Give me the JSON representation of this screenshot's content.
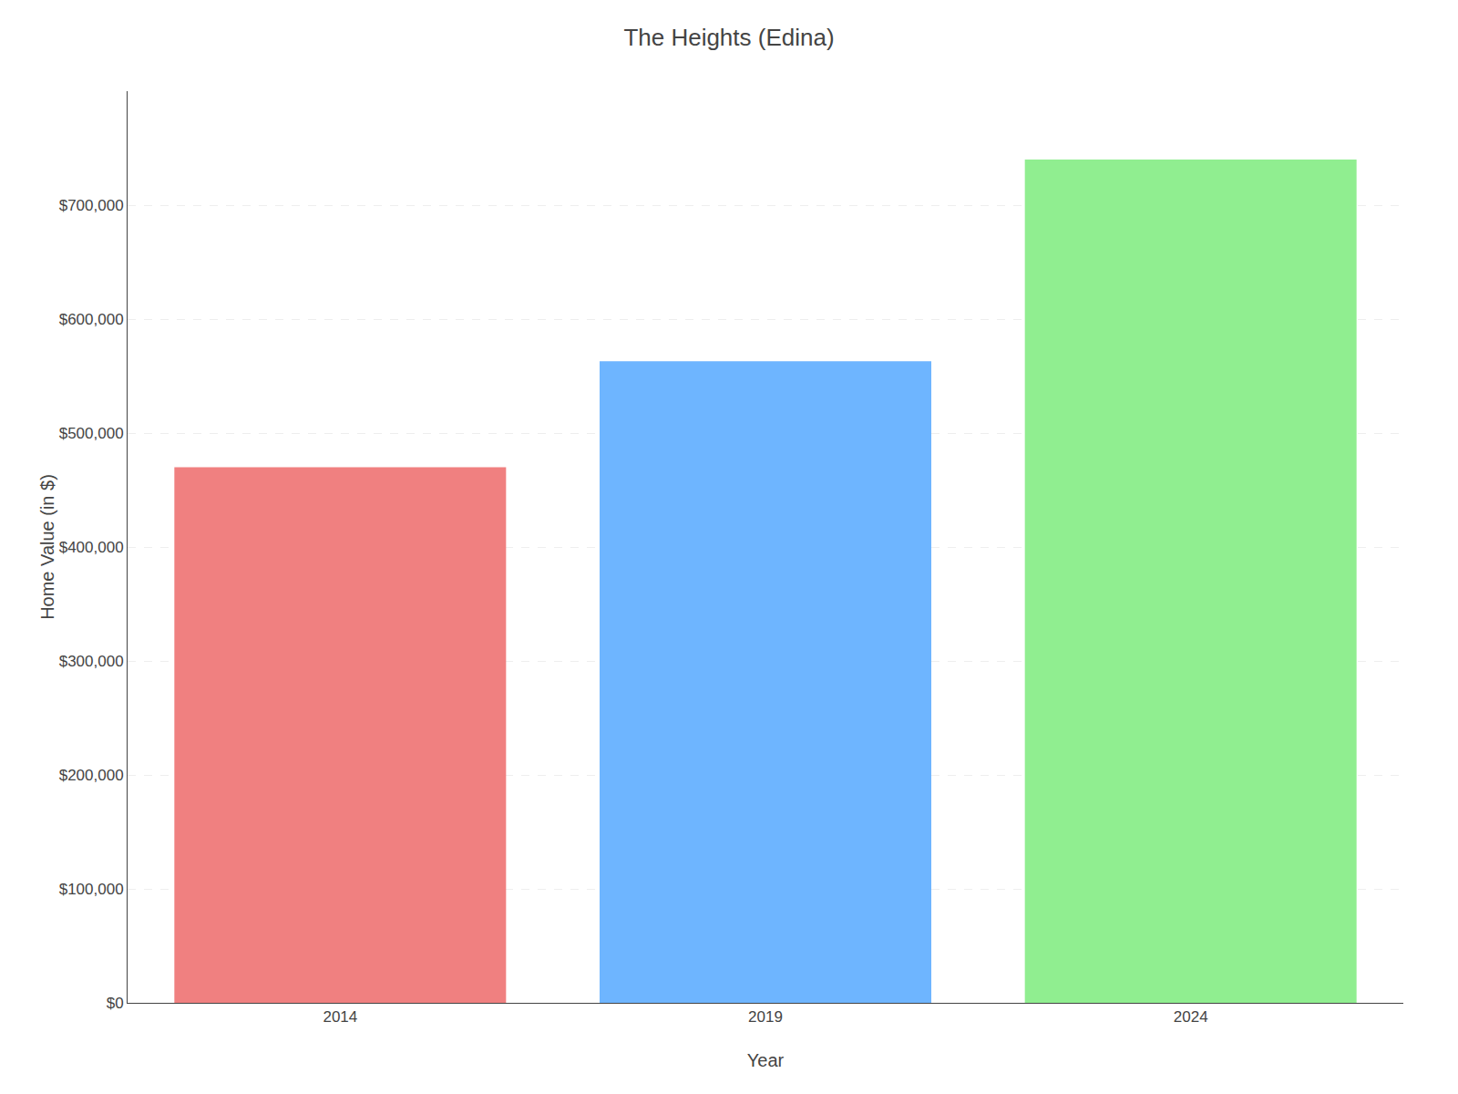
{
  "chart_data": {
    "type": "bar",
    "title": "The Heights (Edina)",
    "xlabel": "Year",
    "ylabel": "Home Value (in $)",
    "categories": [
      "2014",
      "2019",
      "2024"
    ],
    "values": [
      470000,
      563000,
      740000
    ],
    "colors": [
      "#F08080",
      "#6EB5FF",
      "#90EE90"
    ],
    "ylim": [
      0,
      800000
    ],
    "yticks": [
      {
        "value": 0,
        "label": "$0"
      },
      {
        "value": 100000,
        "label": "$100,000"
      },
      {
        "value": 200000,
        "label": "$200,000"
      },
      {
        "value": 300000,
        "label": "$300,000"
      },
      {
        "value": 400000,
        "label": "$400,000"
      },
      {
        "value": 500000,
        "label": "$500,000"
      },
      {
        "value": 600000,
        "label": "$600,000"
      },
      {
        "value": 700000,
        "label": "$700,000"
      }
    ],
    "grid": true
  }
}
